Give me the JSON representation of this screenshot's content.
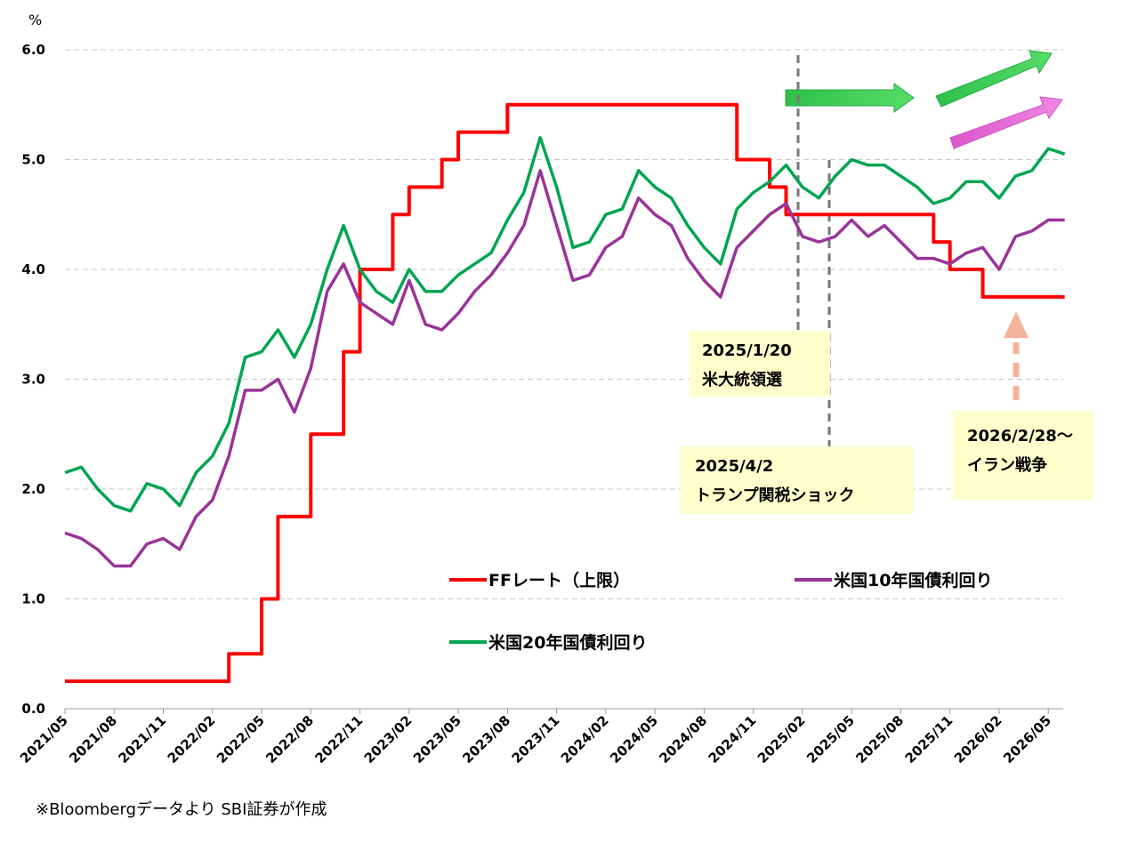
{
  "chart_data": {
    "type": "line",
    "y_label": "%",
    "note": "※Bloombergデータより SBI証券が作成",
    "categories": [
      "2021/05",
      null,
      null,
      "2021/08",
      null,
      null,
      "2021/11",
      null,
      null,
      "2022/02",
      null,
      null,
      "2022/05",
      null,
      null,
      "2022/08",
      null,
      null,
      "2022/11",
      null,
      null,
      "2023/02",
      null,
      null,
      "2023/05",
      null,
      null,
      "2023/08",
      null,
      null,
      "2023/11",
      null,
      null,
      "2024/02",
      null,
      null,
      "2024/05",
      null,
      null,
      "2024/08",
      null,
      null,
      "2024/11",
      null,
      null,
      "2025/02",
      null,
      null,
      "2025/05",
      null,
      null,
      "2025/08",
      null,
      null,
      "2025/11",
      null,
      null,
      "2026/02",
      null,
      null,
      "2026/05",
      null
    ],
    "series": [
      {
        "name": "FFレート（上限）",
        "color": "#ff0000",
        "step": true,
        "values": [
          0.25,
          0.25,
          0.25,
          0.25,
          0.25,
          0.25,
          0.25,
          0.25,
          0.25,
          0.25,
          0.5,
          0.5,
          1.0,
          1.75,
          1.75,
          2.5,
          2.5,
          3.25,
          4.0,
          4.0,
          4.5,
          4.75,
          4.75,
          5.0,
          5.25,
          5.25,
          5.25,
          5.5,
          5.5,
          5.5,
          5.5,
          5.5,
          5.5,
          5.5,
          5.5,
          5.5,
          5.5,
          5.5,
          5.5,
          5.5,
          5.5,
          5.0,
          5.0,
          4.75,
          4.5,
          4.5,
          4.5,
          4.5,
          4.5,
          4.5,
          4.5,
          4.5,
          4.5,
          4.25,
          4.0,
          4.0,
          3.75,
          3.75,
          3.75,
          3.75,
          3.75,
          3.75
        ]
      },
      {
        "name": "米国10年国債利回り",
        "color": "#993399",
        "values": [
          1.6,
          1.55,
          1.45,
          1.3,
          1.3,
          1.5,
          1.55,
          1.45,
          1.75,
          1.9,
          2.3,
          2.9,
          2.9,
          3.0,
          2.7,
          3.1,
          3.8,
          4.05,
          3.7,
          3.6,
          3.5,
          3.9,
          3.5,
          3.45,
          3.6,
          3.8,
          3.95,
          4.15,
          4.4,
          4.9,
          4.4,
          3.9,
          3.95,
          4.2,
          4.3,
          4.65,
          4.5,
          4.4,
          4.1,
          3.9,
          3.75,
          4.2,
          4.35,
          4.5,
          4.6,
          4.3,
          4.25,
          4.3,
          4.45,
          4.3,
          4.4,
          4.25,
          4.1,
          4.1,
          4.05,
          4.15,
          4.2,
          4.0,
          4.3,
          4.35,
          4.45,
          4.45
        ]
      },
      {
        "name": "米国20年国債利回り",
        "color": "#00a550",
        "values": [
          2.15,
          2.2,
          2.0,
          1.85,
          1.8,
          2.05,
          2.0,
          1.85,
          2.15,
          2.3,
          2.6,
          3.2,
          3.25,
          3.45,
          3.2,
          3.5,
          4.0,
          4.4,
          4.0,
          3.8,
          3.7,
          4.0,
          3.8,
          3.8,
          3.95,
          4.05,
          4.15,
          4.45,
          4.7,
          5.2,
          4.75,
          4.2,
          4.25,
          4.5,
          4.55,
          4.9,
          4.75,
          4.65,
          4.4,
          4.2,
          4.05,
          4.55,
          4.7,
          4.8,
          4.95,
          4.75,
          4.65,
          4.85,
          5.0,
          4.95,
          4.95,
          4.85,
          4.75,
          4.6,
          4.65,
          4.8,
          4.8,
          4.65,
          4.85,
          4.9,
          5.1,
          5.05
        ]
      }
    ],
    "ylim": [
      0,
      6
    ],
    "yticks": [
      {
        "value": 0,
        "label": "0.0"
      },
      {
        "value": 1,
        "label": "1.0"
      },
      {
        "value": 2,
        "label": "2.0"
      },
      {
        "value": 3,
        "label": "3.0"
      },
      {
        "value": 4,
        "label": "4.0"
      },
      {
        "value": 5,
        "label": "5.0"
      },
      {
        "value": 6,
        "label": "6.0"
      }
    ],
    "grid": true,
    "annotations": [
      {
        "lines": [
          "2025/1/20",
          "米大統領選"
        ]
      },
      {
        "lines": [
          "2025/4/2",
          "トランプ関税ショック"
        ]
      },
      {
        "lines": [
          "2026/2/28～",
          "イラン戦争"
        ]
      }
    ]
  }
}
